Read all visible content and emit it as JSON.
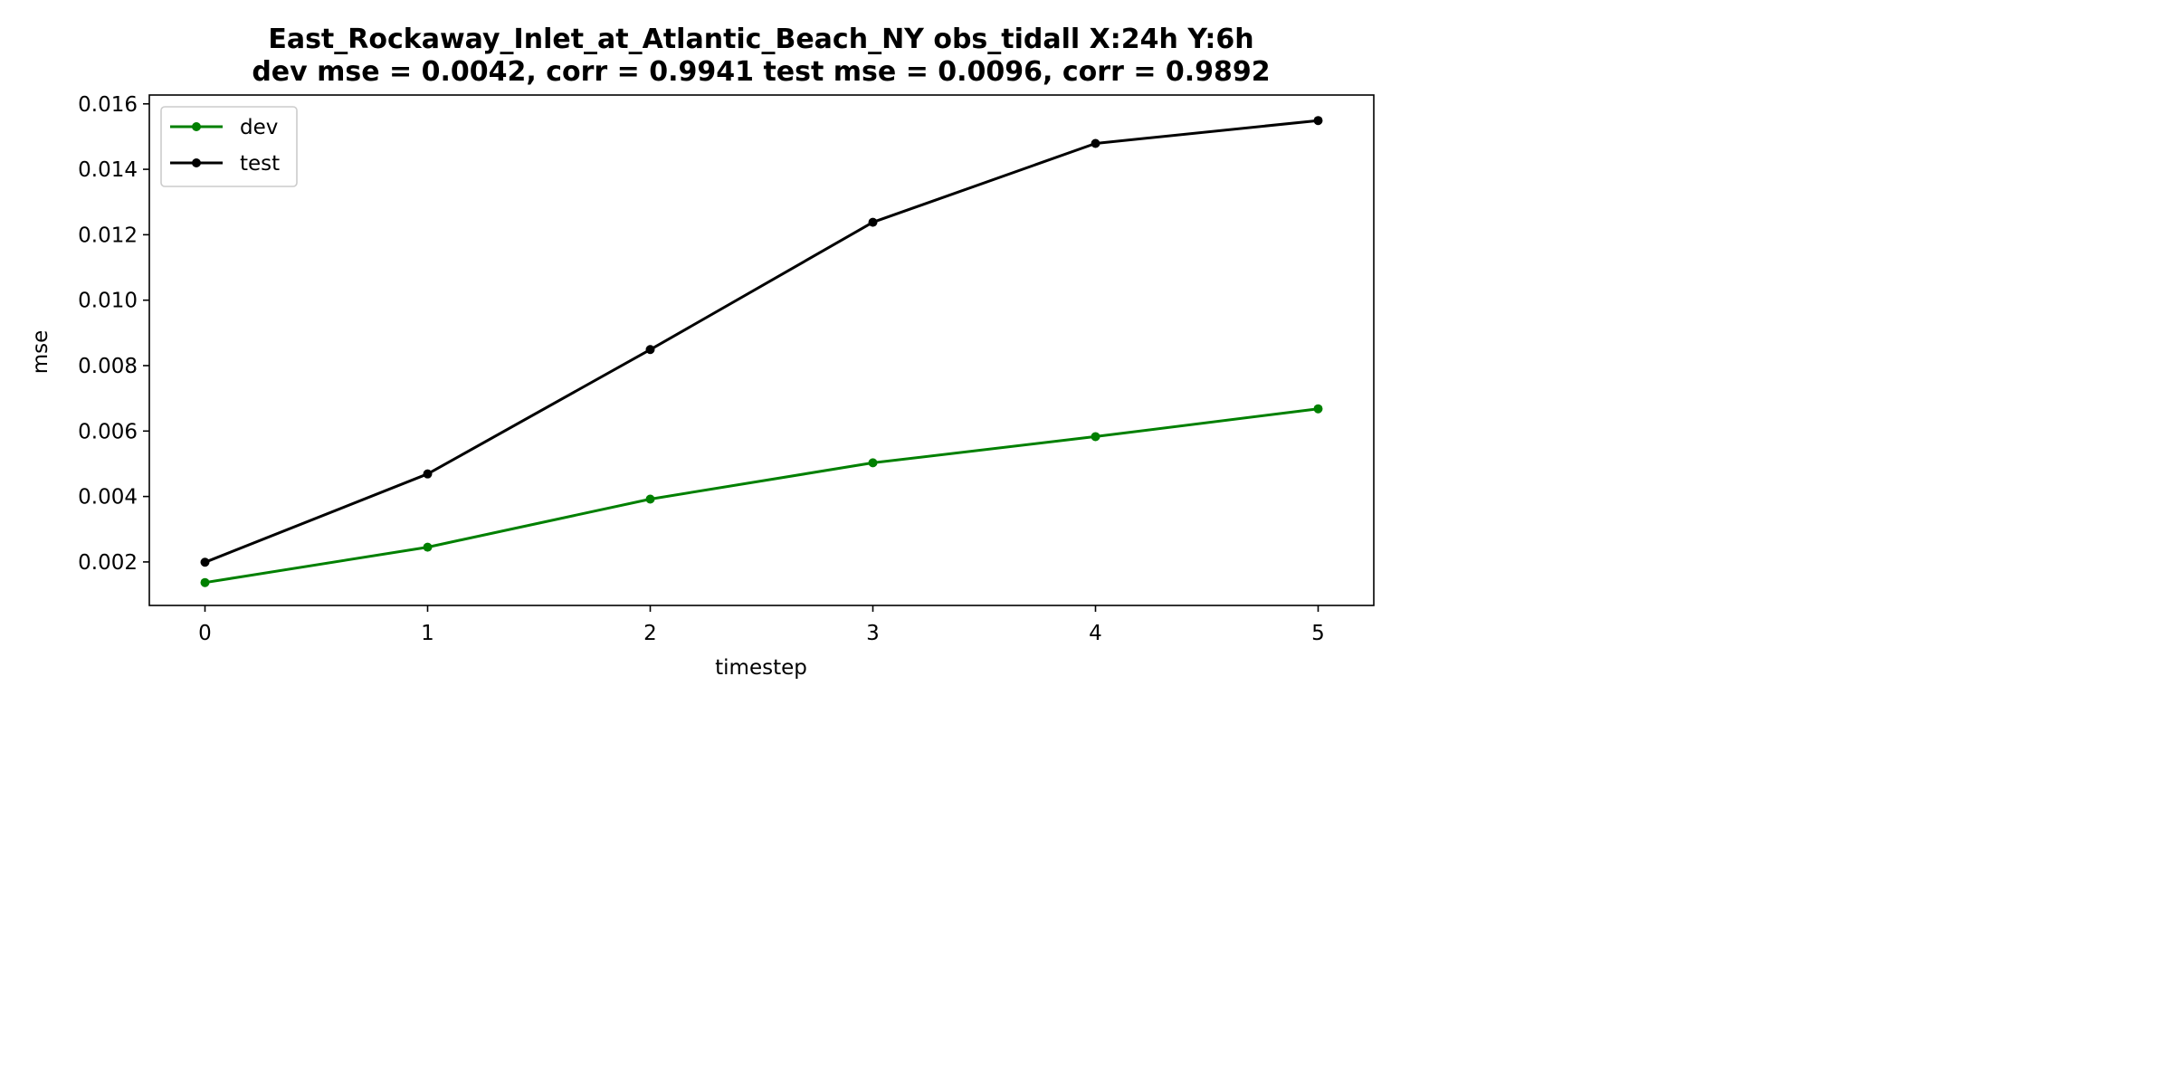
{
  "chart_data": {
    "type": "line",
    "title_lines": [
      "East_Rockaway_Inlet_at_Atlantic_Beach_NY   obs_tidall   X:24h   Y:6h",
      "dev mse = 0.0042, corr = 0.9941   test mse = 0.0096, corr = 0.9892"
    ],
    "xlabel": "timestep",
    "ylabel": "mse",
    "x": [
      0,
      1,
      2,
      3,
      4,
      5
    ],
    "x_ticks": [
      "0",
      "1",
      "2",
      "3",
      "4",
      "5"
    ],
    "y_ticks": [
      "0.002",
      "0.004",
      "0.006",
      "0.008",
      "0.010",
      "0.012",
      "0.014",
      "0.016"
    ],
    "xlim": [
      -0.25,
      5.25
    ],
    "ylim": [
      0.00067,
      0.01627
    ],
    "grid": false,
    "legend_position": "upper-left",
    "series": [
      {
        "name": "dev",
        "color": "#008000",
        "marker": "circle",
        "values": [
          0.00137,
          0.00245,
          0.00392,
          0.00503,
          0.00583,
          0.00668
        ]
      },
      {
        "name": "test",
        "color": "#000000",
        "marker": "circle",
        "values": [
          0.00199,
          0.00469,
          0.00849,
          0.01238,
          0.01479,
          0.01549
        ]
      }
    ]
  }
}
